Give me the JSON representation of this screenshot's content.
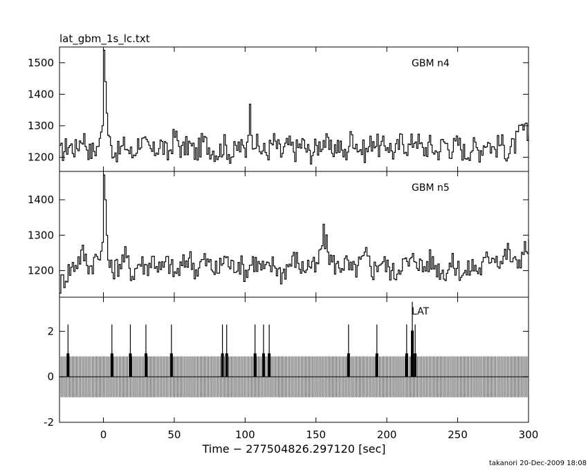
{
  "filename": "lat_gbm_1s_lc.txt",
  "credit": "takanori 20-Dec-2009 18:08",
  "chart_data": {
    "type": "line",
    "xlabel": "Time − 277504826.297120 [sec]",
    "x_range": [
      -31,
      300
    ],
    "x_ticks": [
      0,
      50,
      100,
      150,
      200,
      250,
      300
    ],
    "panels": [
      {
        "id": "n4",
        "label": "GBM n4",
        "ylim": [
          1155,
          1550
        ],
        "y_ticks": [
          1200,
          1300,
          1400,
          1500
        ],
        "x": [
          -31,
          -25,
          -20,
          -15,
          -10,
          -5,
          -3,
          -1,
          0,
          1,
          2,
          3,
          5,
          10,
          15,
          20,
          25,
          30,
          35,
          40,
          45,
          50,
          55,
          60,
          65,
          70,
          75,
          80,
          85,
          90,
          95,
          100,
          103,
          105,
          110,
          115,
          120,
          125,
          130,
          135,
          140,
          145,
          150,
          155,
          160,
          165,
          170,
          175,
          180,
          185,
          190,
          195,
          200,
          205,
          210,
          215,
          220,
          225,
          230,
          235,
          240,
          245,
          250,
          255,
          260,
          265,
          270,
          275,
          280,
          285,
          290,
          295,
          300
        ],
        "y": [
          1210,
          1240,
          1225,
          1270,
          1215,
          1230,
          1260,
          1300,
          1540,
          1440,
          1340,
          1270,
          1230,
          1215,
          1240,
          1205,
          1255,
          1230,
          1215,
          1245,
          1205,
          1270,
          1220,
          1240,
          1210,
          1250,
          1230,
          1215,
          1240,
          1205,
          1235,
          1220,
          1345,
          1260,
          1225,
          1215,
          1250,
          1210,
          1240,
          1220,
          1245,
          1210,
          1230,
          1255,
          1220,
          1240,
          1205,
          1270,
          1230,
          1215,
          1260,
          1225,
          1245,
          1210,
          1255,
          1230,
          1265,
          1220,
          1240,
          1215,
          1250,
          1225,
          1245,
          1210,
          1235,
          1220,
          1255,
          1225,
          1245,
          1215,
          1240,
          1290,
          1265
        ]
      },
      {
        "id": "n5",
        "label": "GBM n5",
        "ylim": [
          1125,
          1480
        ],
        "y_ticks": [
          1200,
          1300,
          1400
        ],
        "x": [
          -31,
          -25,
          -20,
          -15,
          -10,
          -5,
          -3,
          -1,
          0,
          1,
          2,
          3,
          5,
          10,
          15,
          20,
          25,
          30,
          35,
          40,
          45,
          50,
          55,
          60,
          65,
          70,
          75,
          80,
          85,
          90,
          95,
          100,
          105,
          110,
          115,
          120,
          125,
          130,
          135,
          140,
          145,
          150,
          155,
          160,
          165,
          170,
          175,
          180,
          185,
          190,
          195,
          200,
          205,
          210,
          215,
          220,
          225,
          230,
          235,
          240,
          245,
          250,
          255,
          260,
          265,
          270,
          275,
          280,
          285,
          290,
          295,
          300
        ],
        "y": [
          1160,
          1200,
          1220,
          1250,
          1210,
          1240,
          1230,
          1280,
          1470,
          1400,
          1300,
          1230,
          1200,
          1215,
          1240,
          1190,
          1225,
          1210,
          1235,
          1200,
          1225,
          1190,
          1210,
          1240,
          1200,
          1230,
          1215,
          1195,
          1240,
          1210,
          1225,
          1195,
          1230,
          1210,
          1200,
          1220,
          1190,
          1215,
          1235,
          1205,
          1220,
          1200,
          1300,
          1230,
          1210,
          1225,
          1195,
          1215,
          1240,
          1200,
          1230,
          1210,
          1190,
          1225,
          1215,
          1240,
          1205,
          1230,
          1210,
          1195,
          1220,
          1205,
          1190,
          1215,
          1200,
          1230,
          1250,
          1225,
          1255,
          1215,
          1245,
          1275
        ]
      },
      {
        "id": "lat",
        "label": "LAT",
        "ylim": [
          -2,
          3.5
        ],
        "y_ticks": [
          -2,
          0,
          2
        ],
        "baseline": 0,
        "error_bar": 0.9,
        "bin_count": 330,
        "events": [
          {
            "x": -25,
            "y": 1
          },
          {
            "x": 6,
            "y": 1
          },
          {
            "x": 19,
            "y": 1
          },
          {
            "x": 30,
            "y": 1
          },
          {
            "x": 48,
            "y": 1
          },
          {
            "x": 84,
            "y": 1
          },
          {
            "x": 87,
            "y": 1
          },
          {
            "x": 107,
            "y": 1
          },
          {
            "x": 113,
            "y": 1
          },
          {
            "x": 117,
            "y": 1
          },
          {
            "x": 173,
            "y": 1
          },
          {
            "x": 193,
            "y": 1
          },
          {
            "x": 214,
            "y": 1
          },
          {
            "x": 218,
            "y": 2
          },
          {
            "x": 220,
            "y": 1
          }
        ]
      }
    ]
  }
}
